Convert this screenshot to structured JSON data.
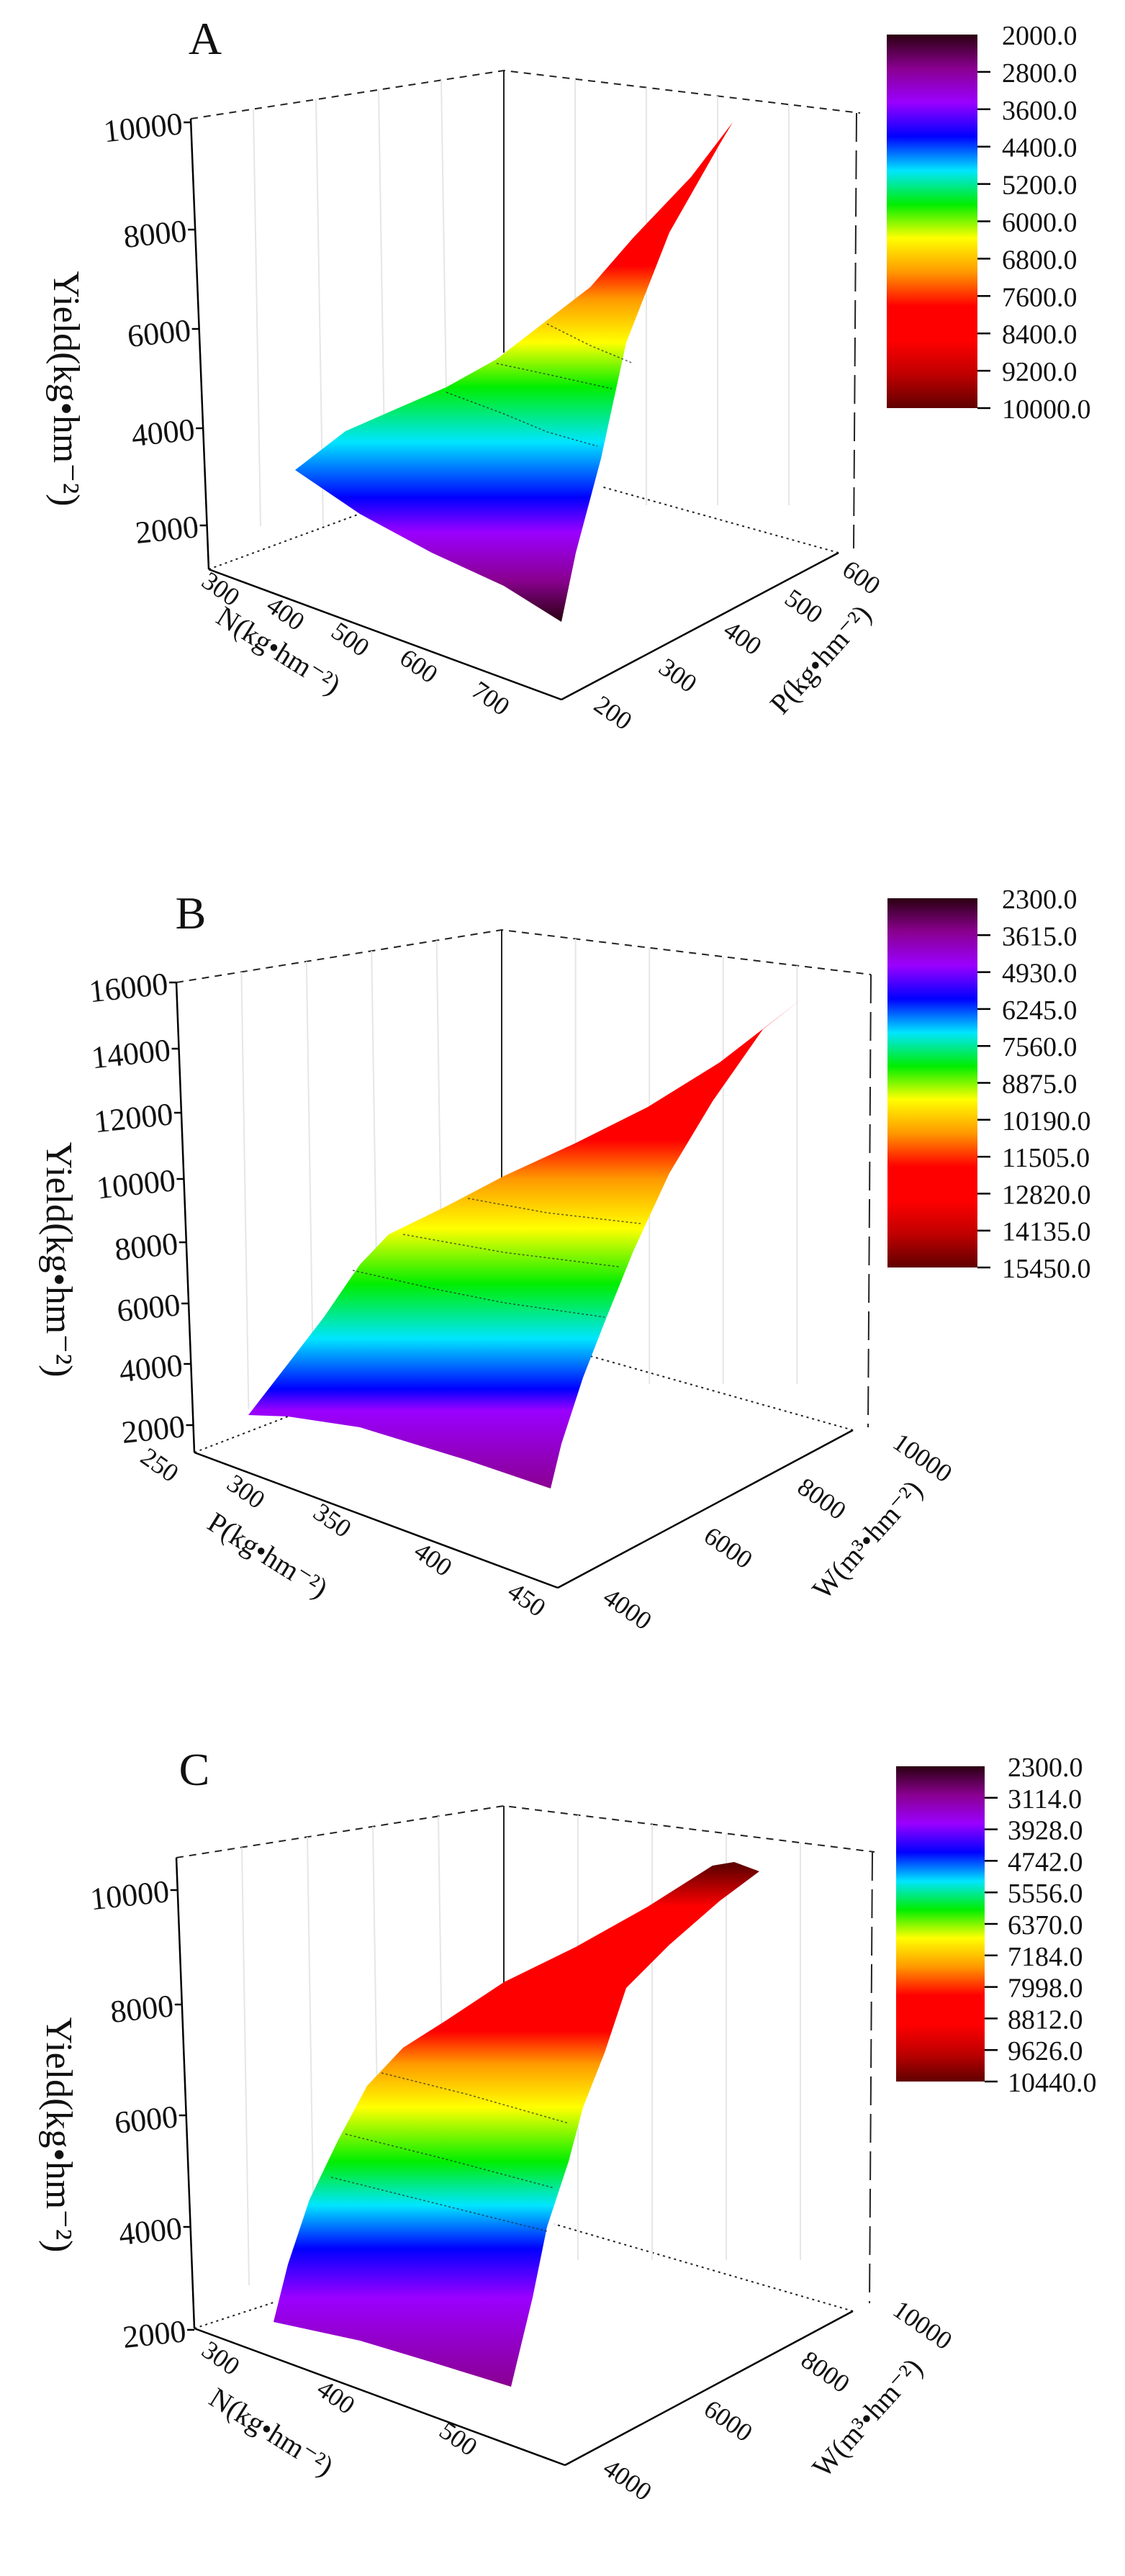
{
  "chart_data": [
    {
      "type": "surface3d",
      "panel_label": "A",
      "zlabel": "Yield(kg•hm⁻²)",
      "xlabel": "N(kg•hm⁻²)",
      "ylabel": "P(kg•hm⁻²)",
      "z_ticks": [
        "10000",
        "8000",
        "6000",
        "4000",
        "2000"
      ],
      "x_ticks": [
        "300",
        "400",
        "500",
        "600",
        "700"
      ],
      "y_ticks": [
        "200",
        "300",
        "400",
        "500",
        "600"
      ],
      "zlim": [
        2000,
        10000
      ],
      "xlim": [
        300,
        700
      ],
      "ylim": [
        200,
        600
      ],
      "colorbar_labels": [
        "2000.0",
        "2800.0",
        "3600.0",
        "4400.0",
        "5200.0",
        "6000.0",
        "6800.0",
        "7600.0",
        "8400.0",
        "9200.0",
        "10000.0"
      ],
      "surface_range": [
        2000,
        10000
      ]
    },
    {
      "type": "surface3d",
      "panel_label": "B",
      "zlabel": "Yield(kg•hm⁻²)",
      "xlabel": "P(kg•hm⁻²)",
      "ylabel": "W(m³•hm⁻²)",
      "z_ticks": [
        "16000",
        "14000",
        "12000",
        "10000",
        "8000",
        "6000",
        "4000",
        "2000"
      ],
      "x_ticks": [
        "250",
        "300",
        "350",
        "400",
        "450"
      ],
      "y_ticks": [
        "4000",
        "6000",
        "8000",
        "10000"
      ],
      "zlim": [
        2000,
        16000
      ],
      "xlim": [
        250,
        450
      ],
      "ylim": [
        4000,
        10000
      ],
      "colorbar_labels": [
        "2300.0",
        "3615.0",
        "4930.0",
        "6245.0",
        "7560.0",
        "8875.0",
        "10190.0",
        "11505.0",
        "12820.0",
        "14135.0",
        "15450.0"
      ],
      "surface_range": [
        2300,
        15450
      ]
    },
    {
      "type": "surface3d",
      "panel_label": "C",
      "zlabel": "Yield(kg•hm⁻²)",
      "xlabel": "N(kg•hm⁻²)",
      "ylabel": "W(m³•hm⁻²)",
      "z_ticks": [
        "10000",
        "8000",
        "6000",
        "4000",
        "2000"
      ],
      "x_ticks": [
        "300",
        "400",
        "500"
      ],
      "y_ticks": [
        "4000",
        "6000",
        "8000",
        "10000"
      ],
      "zlim": [
        2000,
        10440
      ],
      "xlim": [
        300,
        500
      ],
      "ylim": [
        4000,
        10000
      ],
      "colorbar_labels": [
        "2300.0",
        "3114.0",
        "3928.0",
        "4742.0",
        "5556.0",
        "6370.0",
        "7184.0",
        "7998.0",
        "8812.0",
        "9626.0",
        "10440.0"
      ],
      "surface_range": [
        2300,
        10440
      ]
    }
  ],
  "colors": {
    "colormap": [
      "#2a0010",
      "#8a0090",
      "#9a00ff",
      "#0000ff",
      "#00e5ff",
      "#00ee00",
      "#ffff00",
      "#ff9900",
      "#ff0000",
      "#ff0000",
      "#c00000",
      "#600000"
    ]
  }
}
